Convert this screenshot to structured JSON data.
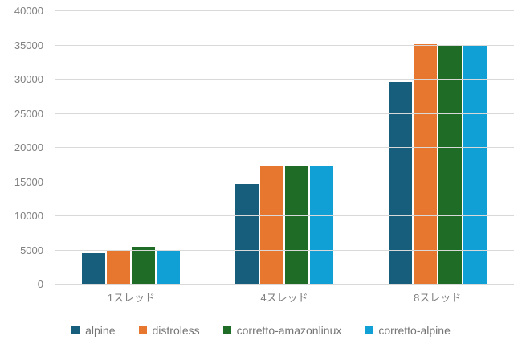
{
  "chart_data": {
    "type": "bar",
    "title": "",
    "xlabel": "",
    "ylabel": "",
    "categories": [
      "1スレッド",
      "4スレッド",
      "8スレッド"
    ],
    "series": [
      {
        "name": "alpine",
        "color": "#175d7c",
        "values": [
          4600,
          14700,
          29700
        ]
      },
      {
        "name": "distroless",
        "color": "#e7762f",
        "values": [
          5100,
          17400,
          35200
        ]
      },
      {
        "name": "corretto-amazonlinux",
        "color": "#1e6c25",
        "values": [
          5500,
          17400,
          35000
        ]
      },
      {
        "name": "corretto-alpine",
        "color": "#11a0d6",
        "values": [
          5100,
          17400,
          34900
        ]
      }
    ],
    "ylim": [
      0,
      40000
    ],
    "yticks": [
      0,
      5000,
      10000,
      15000,
      20000,
      25000,
      30000,
      35000,
      40000
    ],
    "grid": true,
    "legend_position": "bottom"
  },
  "styles": {
    "background": "#ffffff",
    "gridline_color": "#d9d9d9",
    "axis_text_color": "#7f7f7f",
    "legend_text_color": "#757575"
  }
}
